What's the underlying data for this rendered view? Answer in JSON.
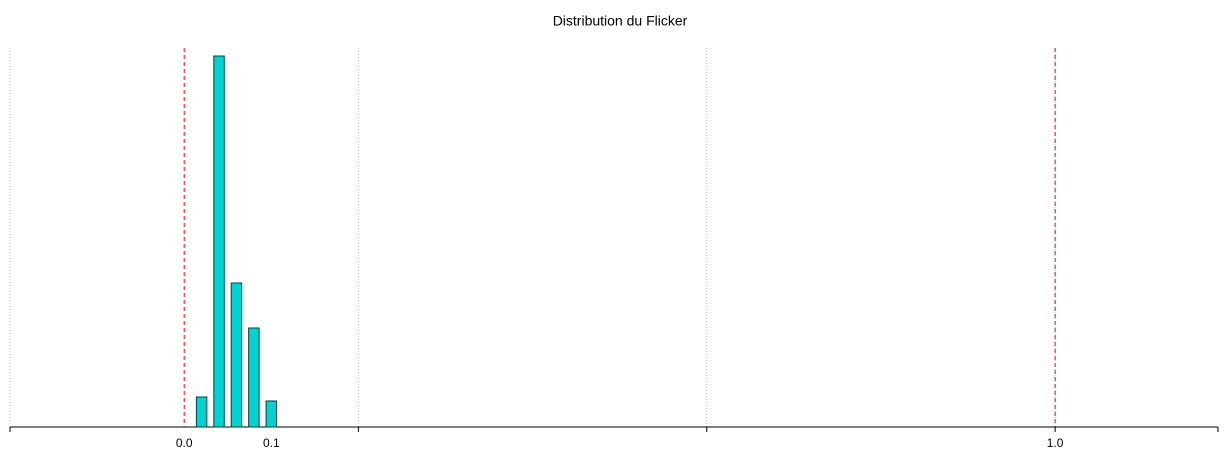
{
  "chart_data": {
    "type": "bar",
    "title": "Distribution du Flicker",
    "x": [
      0.02,
      0.04,
      0.06,
      0.08,
      0.1
    ],
    "values": [
      30,
      371,
      144,
      99,
      26
    ],
    "bar_width": 0.012,
    "color": "#00d2d2",
    "xlim": [
      -0.2,
      1.187
    ],
    "ylim": [
      0,
      400
    ],
    "xticks": [
      {
        "value": 0,
        "label": "0.0"
      },
      {
        "value": 0.1,
        "label": "0.1"
      },
      {
        "value": 1,
        "label": "1.0"
      }
    ],
    "xgrid": [
      -0.2,
      0.2,
      0.6,
      1.0
    ],
    "thresholds": [
      0,
      1.0
    ],
    "threshold_color": "#ff0000",
    "grid": true
  }
}
